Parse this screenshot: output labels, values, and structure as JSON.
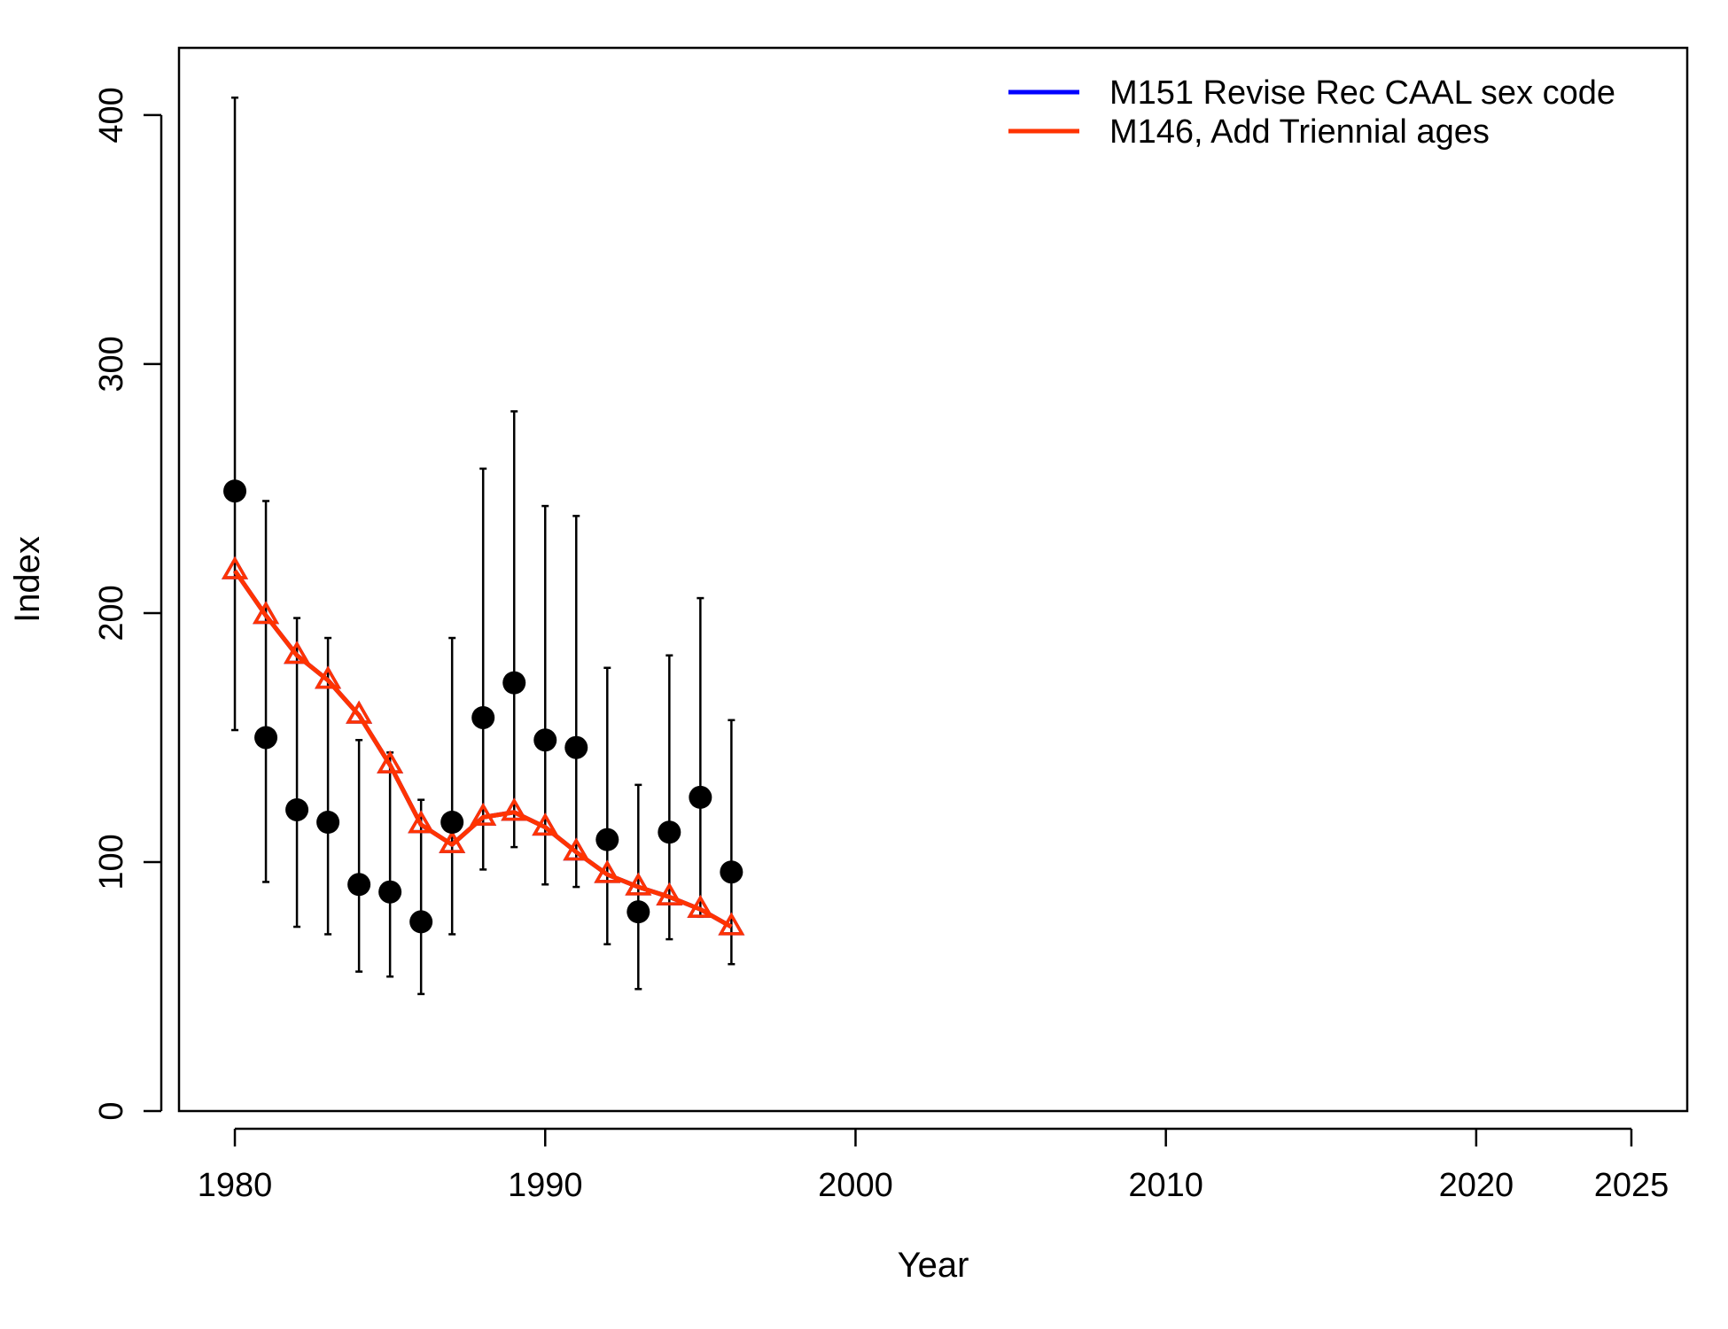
{
  "chart_data": {
    "type": "line",
    "title": "",
    "xlabel": "Year",
    "ylabel": "Index",
    "xlim": [
      1978.2,
      2026.8
    ],
    "ylim": [
      0,
      427
    ],
    "xticks": [
      1980,
      1990,
      2000,
      2010,
      2020,
      2025
    ],
    "yticks": [
      0,
      100,
      200,
      300,
      400
    ],
    "grid": false,
    "legend_position": "top-right",
    "observed": {
      "x": [
        1980,
        1981,
        1982,
        1983,
        1984,
        1985,
        1986,
        1987,
        1988,
        1989,
        1990,
        1991,
        1992,
        1993,
        1994,
        1995,
        1996
      ],
      "y": [
        249,
        150,
        121,
        116,
        91,
        88,
        76,
        116,
        158,
        172,
        149,
        146,
        109,
        80,
        112,
        126,
        96
      ],
      "lower": [
        153,
        92,
        74,
        71,
        56,
        54,
        47,
        71,
        97,
        106,
        91,
        90,
        67,
        49,
        69,
        78,
        59
      ],
      "upper": [
        407,
        245,
        198,
        190,
        149,
        144,
        125,
        190,
        258,
        281,
        243,
        239,
        178,
        131,
        183,
        206,
        157
      ],
      "color": "#000000"
    },
    "series": [
      {
        "name": "M151 Revise Rec CAAL sex code",
        "color": "#0000ff",
        "x": [
          1980,
          1981,
          1982,
          1983,
          1984,
          1985,
          1986,
          1987,
          1988,
          1989,
          1990,
          1991,
          1992,
          1993,
          1994,
          1995,
          1996
        ],
        "y": [
          217,
          199,
          183,
          173,
          159,
          139,
          115,
          107,
          118,
          120,
          114,
          104,
          95,
          90,
          86,
          81,
          74
        ]
      },
      {
        "name": "M146, Add Triennial ages",
        "color": "#ff3300",
        "x": [
          1980,
          1981,
          1982,
          1983,
          1984,
          1985,
          1986,
          1987,
          1988,
          1989,
          1990,
          1991,
          1992,
          1993,
          1994,
          1995,
          1996
        ],
        "y": [
          217,
          199,
          183,
          173,
          159,
          139,
          115,
          107,
          118,
          120,
          114,
          104,
          95,
          90,
          86,
          81,
          74
        ]
      }
    ]
  }
}
